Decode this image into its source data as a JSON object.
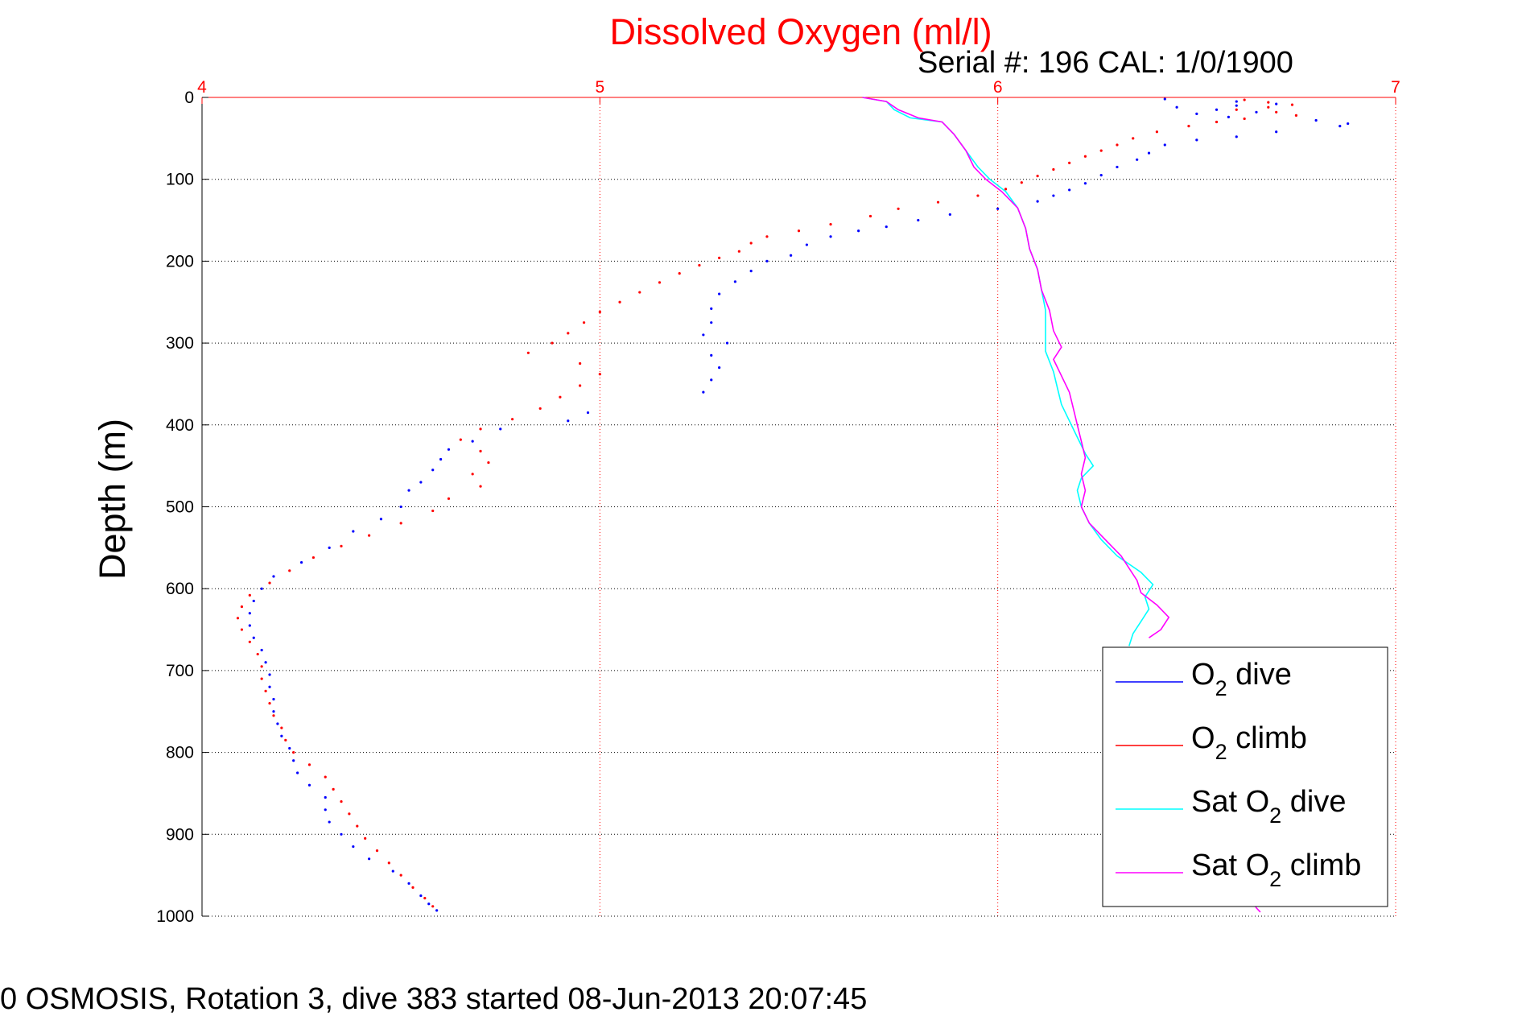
{
  "colors": {
    "o2_dive": "#0000ff",
    "o2_climb": "#ff0000",
    "sat_dive": "#00ffff",
    "sat_climb": "#ff00ff",
    "x_axis": "#ff0000",
    "grid": "#000000",
    "x_grid": "#ff0000"
  },
  "chart_data": {
    "type": "scatter",
    "title": "Dissolved Oxygen (ml/l)",
    "subtitle": "Serial #: 196  CAL: 1/0/1900",
    "xlabel": "",
    "ylabel": "Depth (m)",
    "footer": "0 OSMOSIS, Rotation 3, dive 383 started 08-Jun-2013 20:07:45",
    "xlim": [
      4,
      7
    ],
    "ylim": [
      0,
      1000
    ],
    "y_reversed": true,
    "x_axis_position": "top",
    "x_ticks": [
      4,
      5,
      6,
      7
    ],
    "y_ticks": [
      0,
      100,
      200,
      300,
      400,
      500,
      600,
      700,
      800,
      900,
      1000
    ],
    "grid": true,
    "legend_position": "bottom-right",
    "legend": [
      {
        "main": "O",
        "sub": "2",
        "rest": " dive"
      },
      {
        "main": "O",
        "sub": "2",
        "rest": " climb"
      },
      {
        "main": "Sat O",
        "sub": "2",
        "rest": " dive"
      },
      {
        "main": "Sat O",
        "sub": "2",
        "rest": " climb"
      }
    ],
    "series": [
      {
        "key": "o2_dive",
        "style": "dots",
        "points": [
          [
            6.42,
            2
          ],
          [
            6.6,
            5
          ],
          [
            6.7,
            8
          ],
          [
            6.6,
            10
          ],
          [
            6.45,
            12
          ],
          [
            6.55,
            15
          ],
          [
            6.65,
            18
          ],
          [
            6.5,
            20
          ],
          [
            6.58,
            24
          ],
          [
            6.8,
            28
          ],
          [
            6.88,
            32
          ],
          [
            6.86,
            35
          ],
          [
            6.7,
            42
          ],
          [
            6.6,
            48
          ],
          [
            6.5,
            52
          ],
          [
            6.42,
            58
          ],
          [
            6.38,
            68
          ],
          [
            6.35,
            76
          ],
          [
            6.3,
            85
          ],
          [
            6.26,
            95
          ],
          [
            6.22,
            105
          ],
          [
            6.18,
            113
          ],
          [
            6.14,
            120
          ],
          [
            6.1,
            127
          ],
          [
            6.0,
            136
          ],
          [
            5.88,
            143
          ],
          [
            5.8,
            150
          ],
          [
            5.72,
            158
          ],
          [
            5.65,
            163
          ],
          [
            5.58,
            170
          ],
          [
            5.52,
            180
          ],
          [
            5.48,
            193
          ],
          [
            5.42,
            200
          ],
          [
            5.38,
            212
          ],
          [
            5.34,
            225
          ],
          [
            5.3,
            240
          ],
          [
            5.28,
            258
          ],
          [
            5.28,
            275
          ],
          [
            5.26,
            290
          ],
          [
            5.32,
            300
          ],
          [
            5.28,
            315
          ],
          [
            5.3,
            330
          ],
          [
            5.28,
            345
          ],
          [
            5.26,
            360
          ],
          [
            4.97,
            385
          ],
          [
            4.92,
            395
          ],
          [
            4.75,
            405
          ],
          [
            4.68,
            420
          ],
          [
            4.62,
            430
          ],
          [
            4.6,
            442
          ],
          [
            4.58,
            455
          ],
          [
            4.55,
            470
          ],
          [
            4.52,
            480
          ],
          [
            4.5,
            500
          ],
          [
            4.45,
            515
          ],
          [
            4.38,
            530
          ],
          [
            4.32,
            550
          ],
          [
            4.25,
            568
          ],
          [
            4.18,
            585
          ],
          [
            4.15,
            600
          ],
          [
            4.13,
            615
          ],
          [
            4.12,
            630
          ],
          [
            4.12,
            645
          ],
          [
            4.13,
            660
          ],
          [
            4.15,
            675
          ],
          [
            4.16,
            690
          ],
          [
            4.17,
            705
          ],
          [
            4.17,
            720
          ],
          [
            4.18,
            735
          ],
          [
            4.18,
            750
          ],
          [
            4.19,
            765
          ],
          [
            4.2,
            780
          ],
          [
            4.22,
            795
          ],
          [
            4.23,
            810
          ],
          [
            4.24,
            825
          ],
          [
            4.27,
            840
          ],
          [
            4.31,
            855
          ],
          [
            4.31,
            870
          ],
          [
            4.32,
            885
          ],
          [
            4.35,
            900
          ],
          [
            4.38,
            915
          ],
          [
            4.42,
            930
          ],
          [
            4.48,
            945
          ],
          [
            4.52,
            960
          ],
          [
            4.55,
            975
          ],
          [
            4.57,
            985
          ],
          [
            4.59,
            993
          ]
        ]
      },
      {
        "key": "o2_climb",
        "style": "dots",
        "points": [
          [
            6.62,
            3
          ],
          [
            6.68,
            6
          ],
          [
            6.74,
            9
          ],
          [
            6.68,
            12
          ],
          [
            6.6,
            15
          ],
          [
            6.7,
            18
          ],
          [
            6.75,
            22
          ],
          [
            6.62,
            26
          ],
          [
            6.55,
            30
          ],
          [
            6.48,
            35
          ],
          [
            6.4,
            42
          ],
          [
            6.34,
            50
          ],
          [
            6.3,
            58
          ],
          [
            6.26,
            65
          ],
          [
            6.22,
            72
          ],
          [
            6.18,
            80
          ],
          [
            6.14,
            88
          ],
          [
            6.1,
            96
          ],
          [
            6.06,
            104
          ],
          [
            6.02,
            112
          ],
          [
            5.95,
            120
          ],
          [
            5.85,
            128
          ],
          [
            5.75,
            136
          ],
          [
            5.68,
            145
          ],
          [
            5.58,
            155
          ],
          [
            5.5,
            163
          ],
          [
            5.42,
            170
          ],
          [
            5.38,
            178
          ],
          [
            5.35,
            188
          ],
          [
            5.3,
            196
          ],
          [
            5.25,
            205
          ],
          [
            5.2,
            215
          ],
          [
            5.15,
            226
          ],
          [
            5.1,
            238
          ],
          [
            5.05,
            250
          ],
          [
            5.0,
            262
          ],
          [
            4.96,
            275
          ],
          [
            4.92,
            288
          ],
          [
            4.88,
            300
          ],
          [
            4.82,
            312
          ],
          [
            4.95,
            325
          ],
          [
            5.0,
            338
          ],
          [
            4.95,
            352
          ],
          [
            4.9,
            366
          ],
          [
            4.85,
            380
          ],
          [
            4.78,
            393
          ],
          [
            4.7,
            405
          ],
          [
            4.65,
            418
          ],
          [
            4.7,
            432
          ],
          [
            4.72,
            446
          ],
          [
            4.68,
            460
          ],
          [
            4.7,
            475
          ],
          [
            4.62,
            490
          ],
          [
            4.58,
            505
          ],
          [
            4.5,
            520
          ],
          [
            4.42,
            535
          ],
          [
            4.35,
            548
          ],
          [
            4.28,
            562
          ],
          [
            4.22,
            578
          ],
          [
            4.17,
            593
          ],
          [
            4.12,
            608
          ],
          [
            4.1,
            622
          ],
          [
            4.09,
            636
          ],
          [
            4.1,
            650
          ],
          [
            4.12,
            665
          ],
          [
            4.14,
            680
          ],
          [
            4.15,
            695
          ],
          [
            4.15,
            710
          ],
          [
            4.16,
            725
          ],
          [
            4.17,
            740
          ],
          [
            4.18,
            755
          ],
          [
            4.2,
            770
          ],
          [
            4.21,
            785
          ],
          [
            4.23,
            800
          ],
          [
            4.27,
            815
          ],
          [
            4.31,
            830
          ],
          [
            4.33,
            845
          ],
          [
            4.35,
            860
          ],
          [
            4.37,
            875
          ],
          [
            4.39,
            890
          ],
          [
            4.41,
            905
          ],
          [
            4.44,
            920
          ],
          [
            4.47,
            935
          ],
          [
            4.5,
            950
          ],
          [
            4.53,
            965
          ],
          [
            4.56,
            978
          ],
          [
            4.58,
            988
          ]
        ]
      },
      {
        "key": "sat_dive",
        "style": "line",
        "points": [
          [
            5.66,
            0
          ],
          [
            5.72,
            5
          ],
          [
            5.74,
            15
          ],
          [
            5.78,
            25
          ],
          [
            5.86,
            30
          ],
          [
            5.89,
            45
          ],
          [
            5.92,
            65
          ],
          [
            5.95,
            85
          ],
          [
            5.98,
            100
          ],
          [
            6.02,
            115
          ],
          [
            6.05,
            135
          ],
          [
            6.07,
            160
          ],
          [
            6.08,
            185
          ],
          [
            6.1,
            210
          ],
          [
            6.11,
            235
          ],
          [
            6.12,
            260
          ],
          [
            6.12,
            285
          ],
          [
            6.12,
            310
          ],
          [
            6.14,
            335
          ],
          [
            6.15,
            355
          ],
          [
            6.16,
            375
          ],
          [
            6.18,
            395
          ],
          [
            6.2,
            415
          ],
          [
            6.22,
            435
          ],
          [
            6.24,
            450
          ],
          [
            6.21,
            465
          ],
          [
            6.2,
            480
          ],
          [
            6.21,
            500
          ],
          [
            6.23,
            520
          ],
          [
            6.26,
            540
          ],
          [
            6.3,
            560
          ],
          [
            6.36,
            580
          ],
          [
            6.39,
            595
          ],
          [
            6.37,
            610
          ],
          [
            6.38,
            625
          ],
          [
            6.36,
            640
          ],
          [
            6.34,
            655
          ],
          [
            6.33,
            670
          ]
        ]
      },
      {
        "key": "sat_climb",
        "style": "line",
        "points": [
          [
            5.66,
            0
          ],
          [
            5.72,
            5
          ],
          [
            5.75,
            15
          ],
          [
            5.8,
            25
          ],
          [
            5.86,
            30
          ],
          [
            5.89,
            45
          ],
          [
            5.92,
            65
          ],
          [
            5.94,
            85
          ],
          [
            5.97,
            100
          ],
          [
            6.01,
            115
          ],
          [
            6.05,
            135
          ],
          [
            6.07,
            160
          ],
          [
            6.08,
            185
          ],
          [
            6.1,
            210
          ],
          [
            6.11,
            235
          ],
          [
            6.13,
            260
          ],
          [
            6.14,
            285
          ],
          [
            6.16,
            305
          ],
          [
            6.14,
            320
          ],
          [
            6.16,
            340
          ],
          [
            6.18,
            360
          ],
          [
            6.19,
            380
          ],
          [
            6.2,
            400
          ],
          [
            6.21,
            420
          ],
          [
            6.22,
            440
          ],
          [
            6.21,
            460
          ],
          [
            6.22,
            480
          ],
          [
            6.21,
            500
          ],
          [
            6.23,
            520
          ],
          [
            6.27,
            540
          ],
          [
            6.31,
            560
          ],
          [
            6.33,
            575
          ],
          [
            6.35,
            590
          ],
          [
            6.36,
            605
          ],
          [
            6.4,
            620
          ],
          [
            6.43,
            635
          ],
          [
            6.41,
            650
          ],
          [
            6.38,
            660
          ]
        ]
      },
      {
        "key": "sat_climb_tail",
        "style": "line",
        "points": [
          [
            6.64,
            982
          ],
          [
            6.65,
            990
          ],
          [
            6.66,
            995
          ]
        ]
      }
    ]
  }
}
